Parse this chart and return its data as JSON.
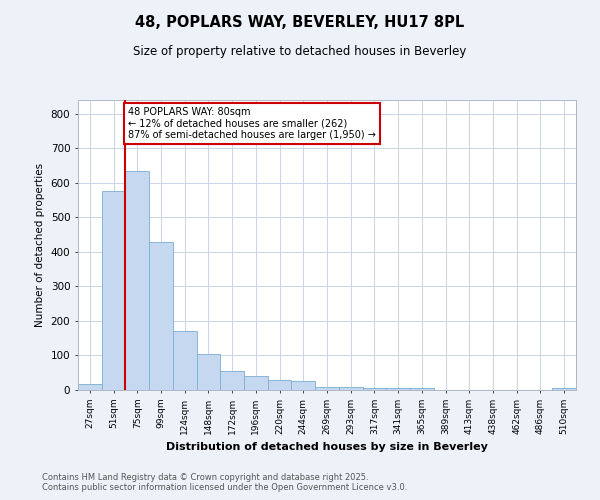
{
  "title_line1": "48, POPLARS WAY, BEVERLEY, HU17 8PL",
  "title_line2": "Size of property relative to detached houses in Beverley",
  "xlabel": "Distribution of detached houses by size in Beverley",
  "ylabel": "Number of detached properties",
  "categories": [
    "27sqm",
    "51sqm",
    "75sqm",
    "99sqm",
    "124sqm",
    "148sqm",
    "172sqm",
    "196sqm",
    "220sqm",
    "244sqm",
    "269sqm",
    "293sqm",
    "317sqm",
    "341sqm",
    "365sqm",
    "389sqm",
    "413sqm",
    "438sqm",
    "462sqm",
    "486sqm",
    "510sqm"
  ],
  "values": [
    17,
    575,
    635,
    430,
    170,
    103,
    55,
    40,
    30,
    25,
    10,
    8,
    6,
    5,
    5,
    0,
    0,
    0,
    0,
    0,
    5
  ],
  "bar_color": "#c5d8ef",
  "bar_edge_color": "#7bafd4",
  "red_line_x": 1.5,
  "annotation_text": "48 POPLARS WAY: 80sqm\n← 12% of detached houses are smaller (262)\n87% of semi-detached houses are larger (1,950) →",
  "annotation_box_color": "#ffffff",
  "annotation_box_edge_color": "#cc0000",
  "ylim": [
    0,
    840
  ],
  "yticks": [
    0,
    100,
    200,
    300,
    400,
    500,
    600,
    700,
    800
  ],
  "footer_line1": "Contains HM Land Registry data © Crown copyright and database right 2025.",
  "footer_line2": "Contains public sector information licensed under the Open Government Licence v3.0.",
  "bg_color": "#edf2f9",
  "plot_bg_color": "#ffffff",
  "grid_color": "#c8d5e8"
}
